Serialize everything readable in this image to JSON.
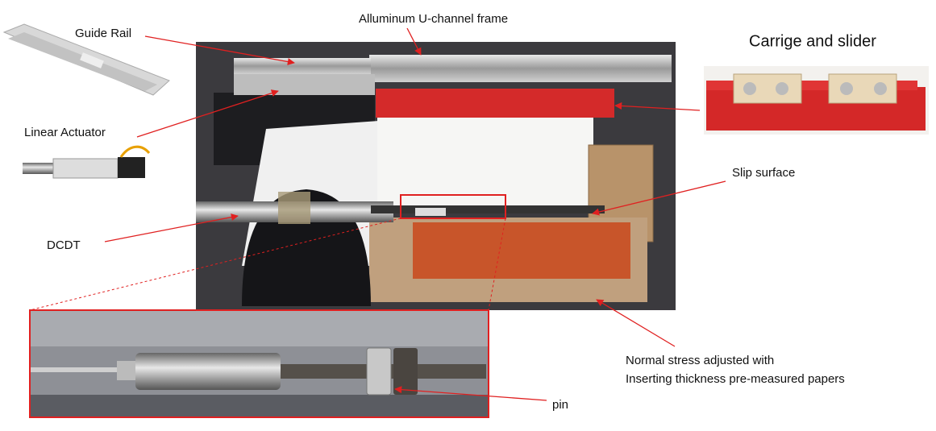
{
  "labels": {
    "guide_rail": "Guide Rail",
    "frame": "Alluminum U-channel frame",
    "carriage": "Carrige and slider",
    "actuator": "Linear Actuator",
    "slip_surface": "Slip surface",
    "dcdt": "DCDT",
    "normal_stress": [
      "Normal stress adjusted with",
      "Inserting thickness pre-measured papers"
    ],
    "pin": "pin"
  }
}
